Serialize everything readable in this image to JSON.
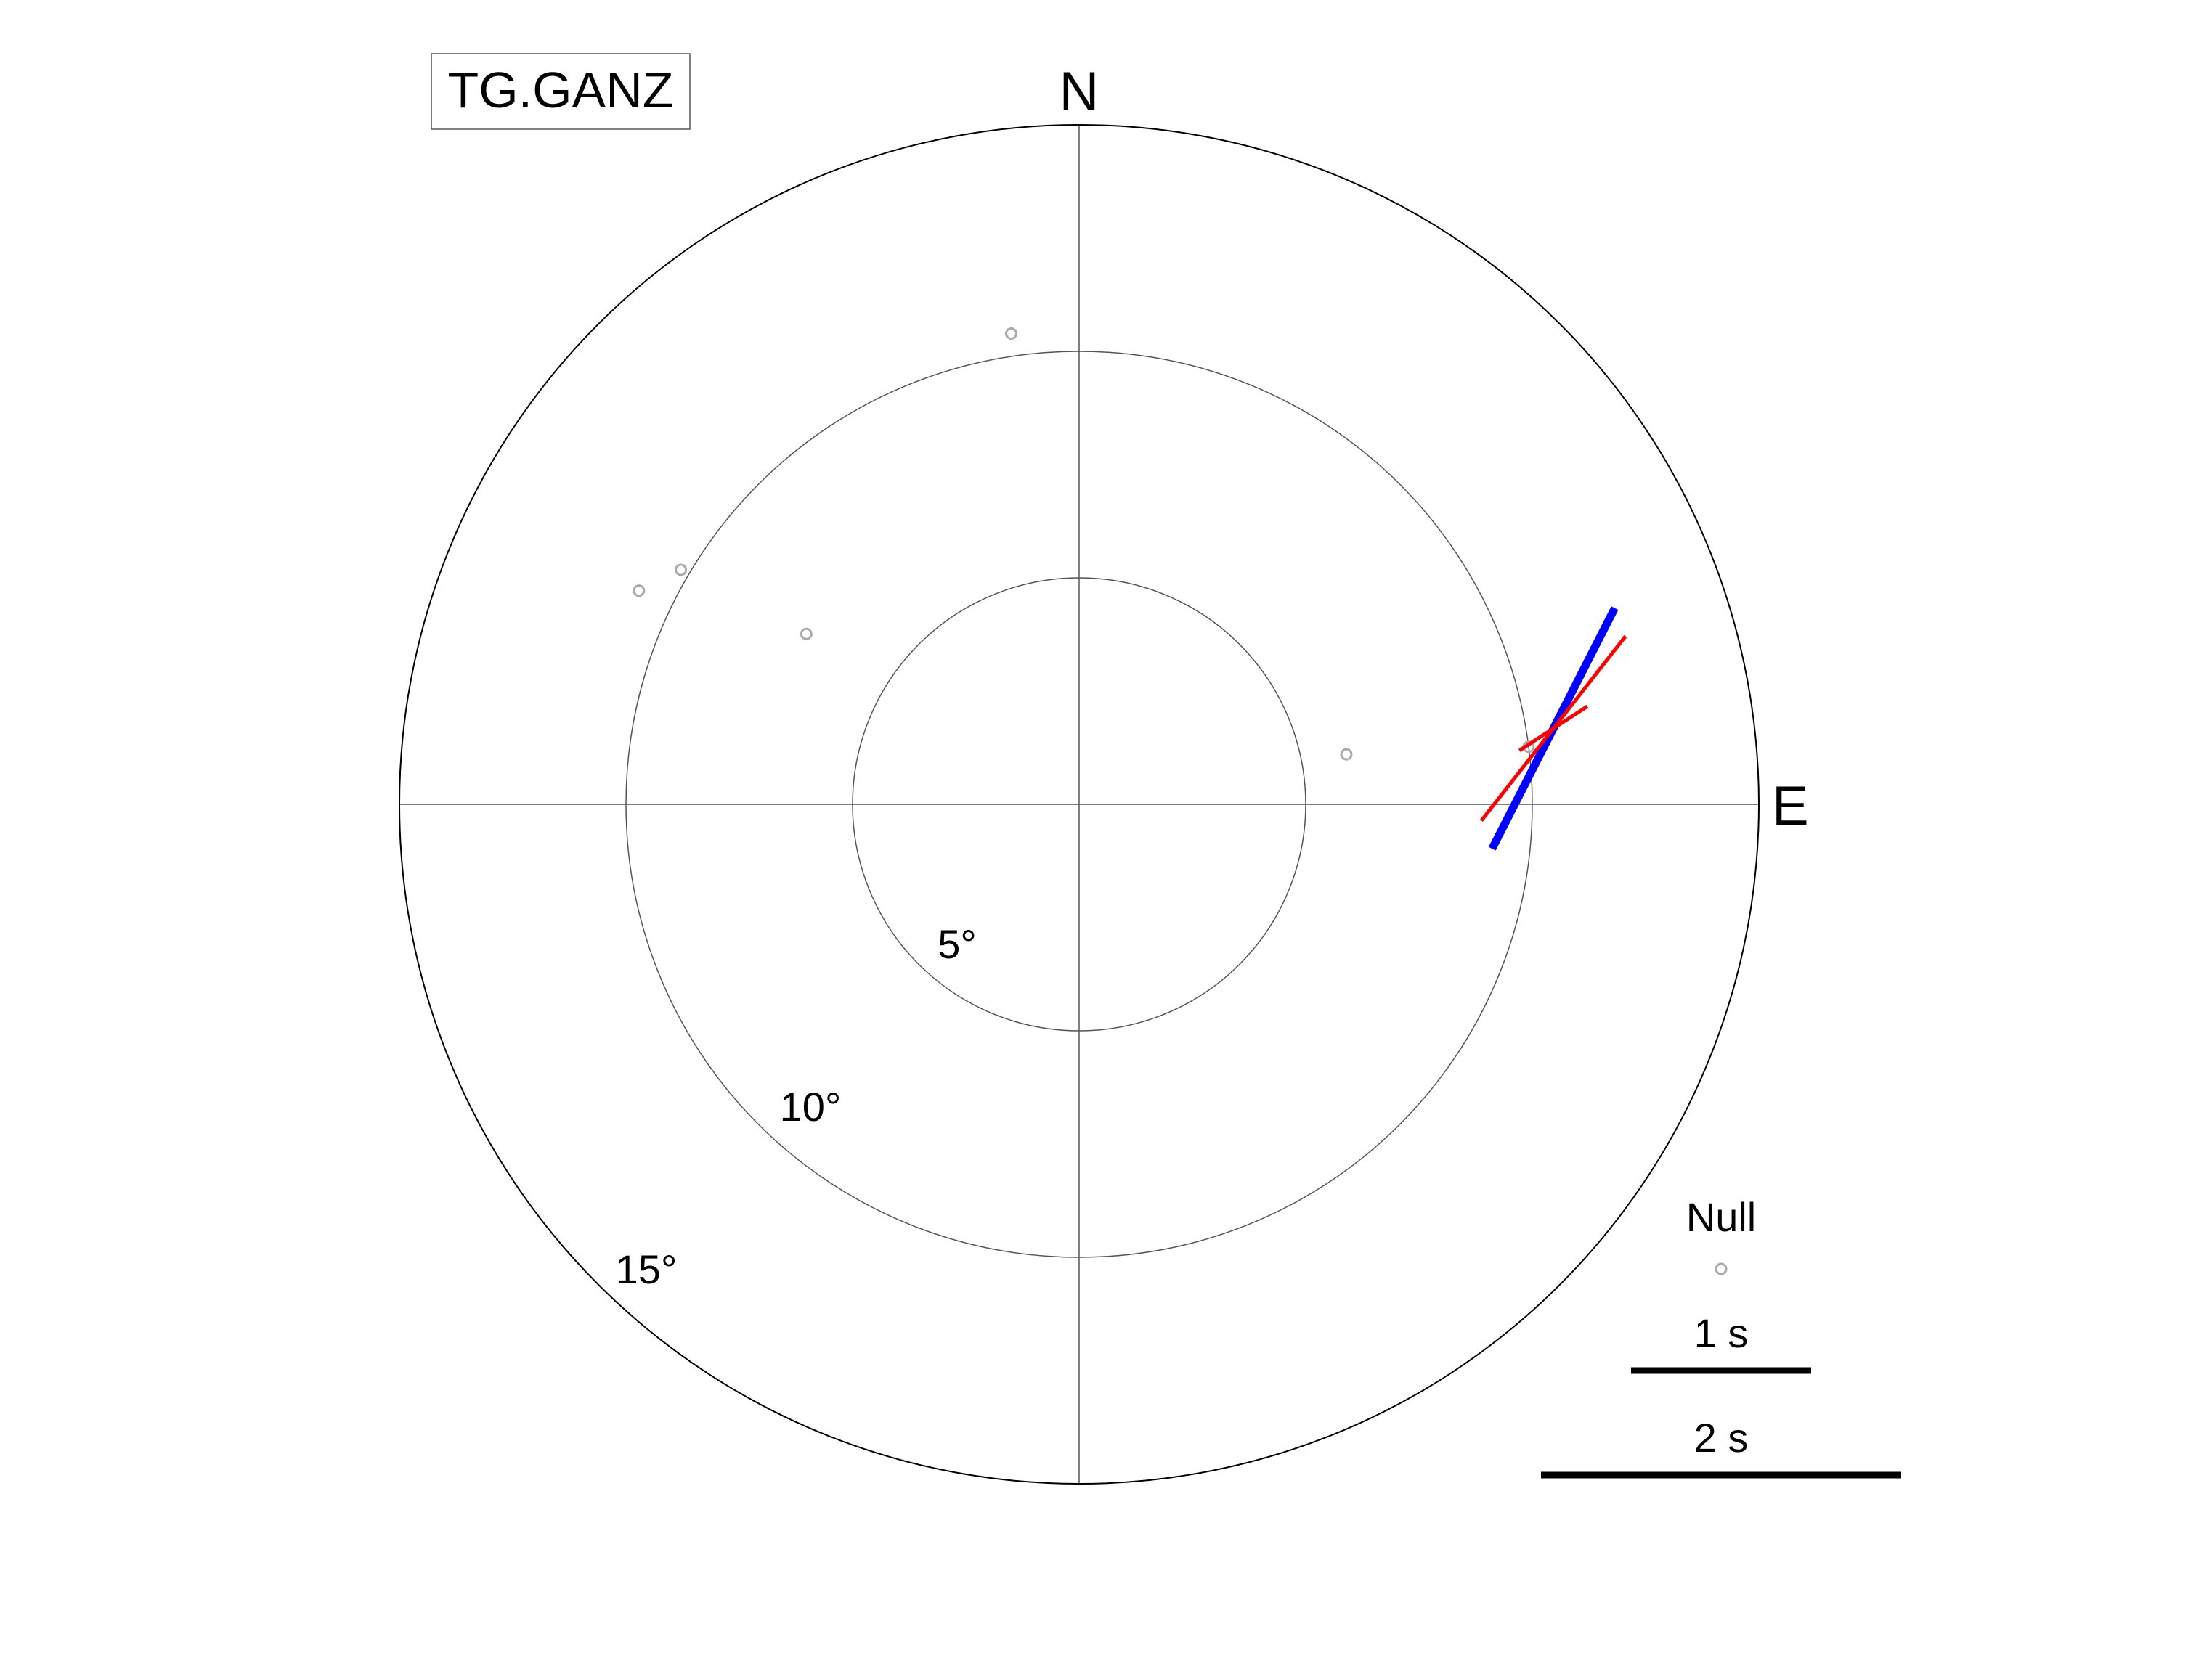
{
  "station": "TG.GANZ",
  "chart_data": {
    "type": "scatter",
    "title": "TG.GANZ",
    "projection": "polar",
    "compass_labels": {
      "north": "N",
      "east": "E"
    },
    "ring_labels": [
      "5°",
      "10°",
      "15°"
    ],
    "radius_max_deg": 15,
    "ring_values_deg": [
      5,
      10,
      15
    ],
    "grid": true,
    "null_points": [
      {
        "azimuth_deg": 351.8,
        "distance_deg": 10.5
      },
      {
        "azimuth_deg": 300.5,
        "distance_deg": 10.2
      },
      {
        "azimuth_deg": 295.9,
        "distance_deg": 10.8
      },
      {
        "azimuth_deg": 302.0,
        "distance_deg": 7.1
      },
      {
        "azimuth_deg": 79.4,
        "distance_deg": 6.0
      },
      {
        "azimuth_deg": 82.7,
        "distance_deg": 10.0
      }
    ],
    "splitting_measurements": [
      {
        "series": "stacked",
        "color": "#0000ff",
        "azimuth_deg": 80.9,
        "distance_deg": 10.6,
        "fast_azimuth_deg": 27,
        "delay_s": 1.5
      },
      {
        "series": "single",
        "color": "#ff0000",
        "azimuth_deg": 80.9,
        "distance_deg": 10.6,
        "fast_azimuth_deg": 38,
        "delay_s": 1.3
      },
      {
        "series": "single",
        "color": "#ff0000",
        "azimuth_deg": 80.9,
        "distance_deg": 10.6,
        "fast_azimuth_deg": 57,
        "delay_s": 0.45
      }
    ],
    "legend": {
      "position": "bottom-right",
      "null_label": "Null",
      "scale_bars": [
        {
          "label": "1 s",
          "delay_s": 1
        },
        {
          "label": "2 s",
          "delay_s": 2
        }
      ]
    }
  },
  "colors": {
    "null_marker": "#aaaaaa",
    "stacked": "#0000ff",
    "single": "#ff0000",
    "grid": "#555555",
    "frame": "#000000"
  }
}
